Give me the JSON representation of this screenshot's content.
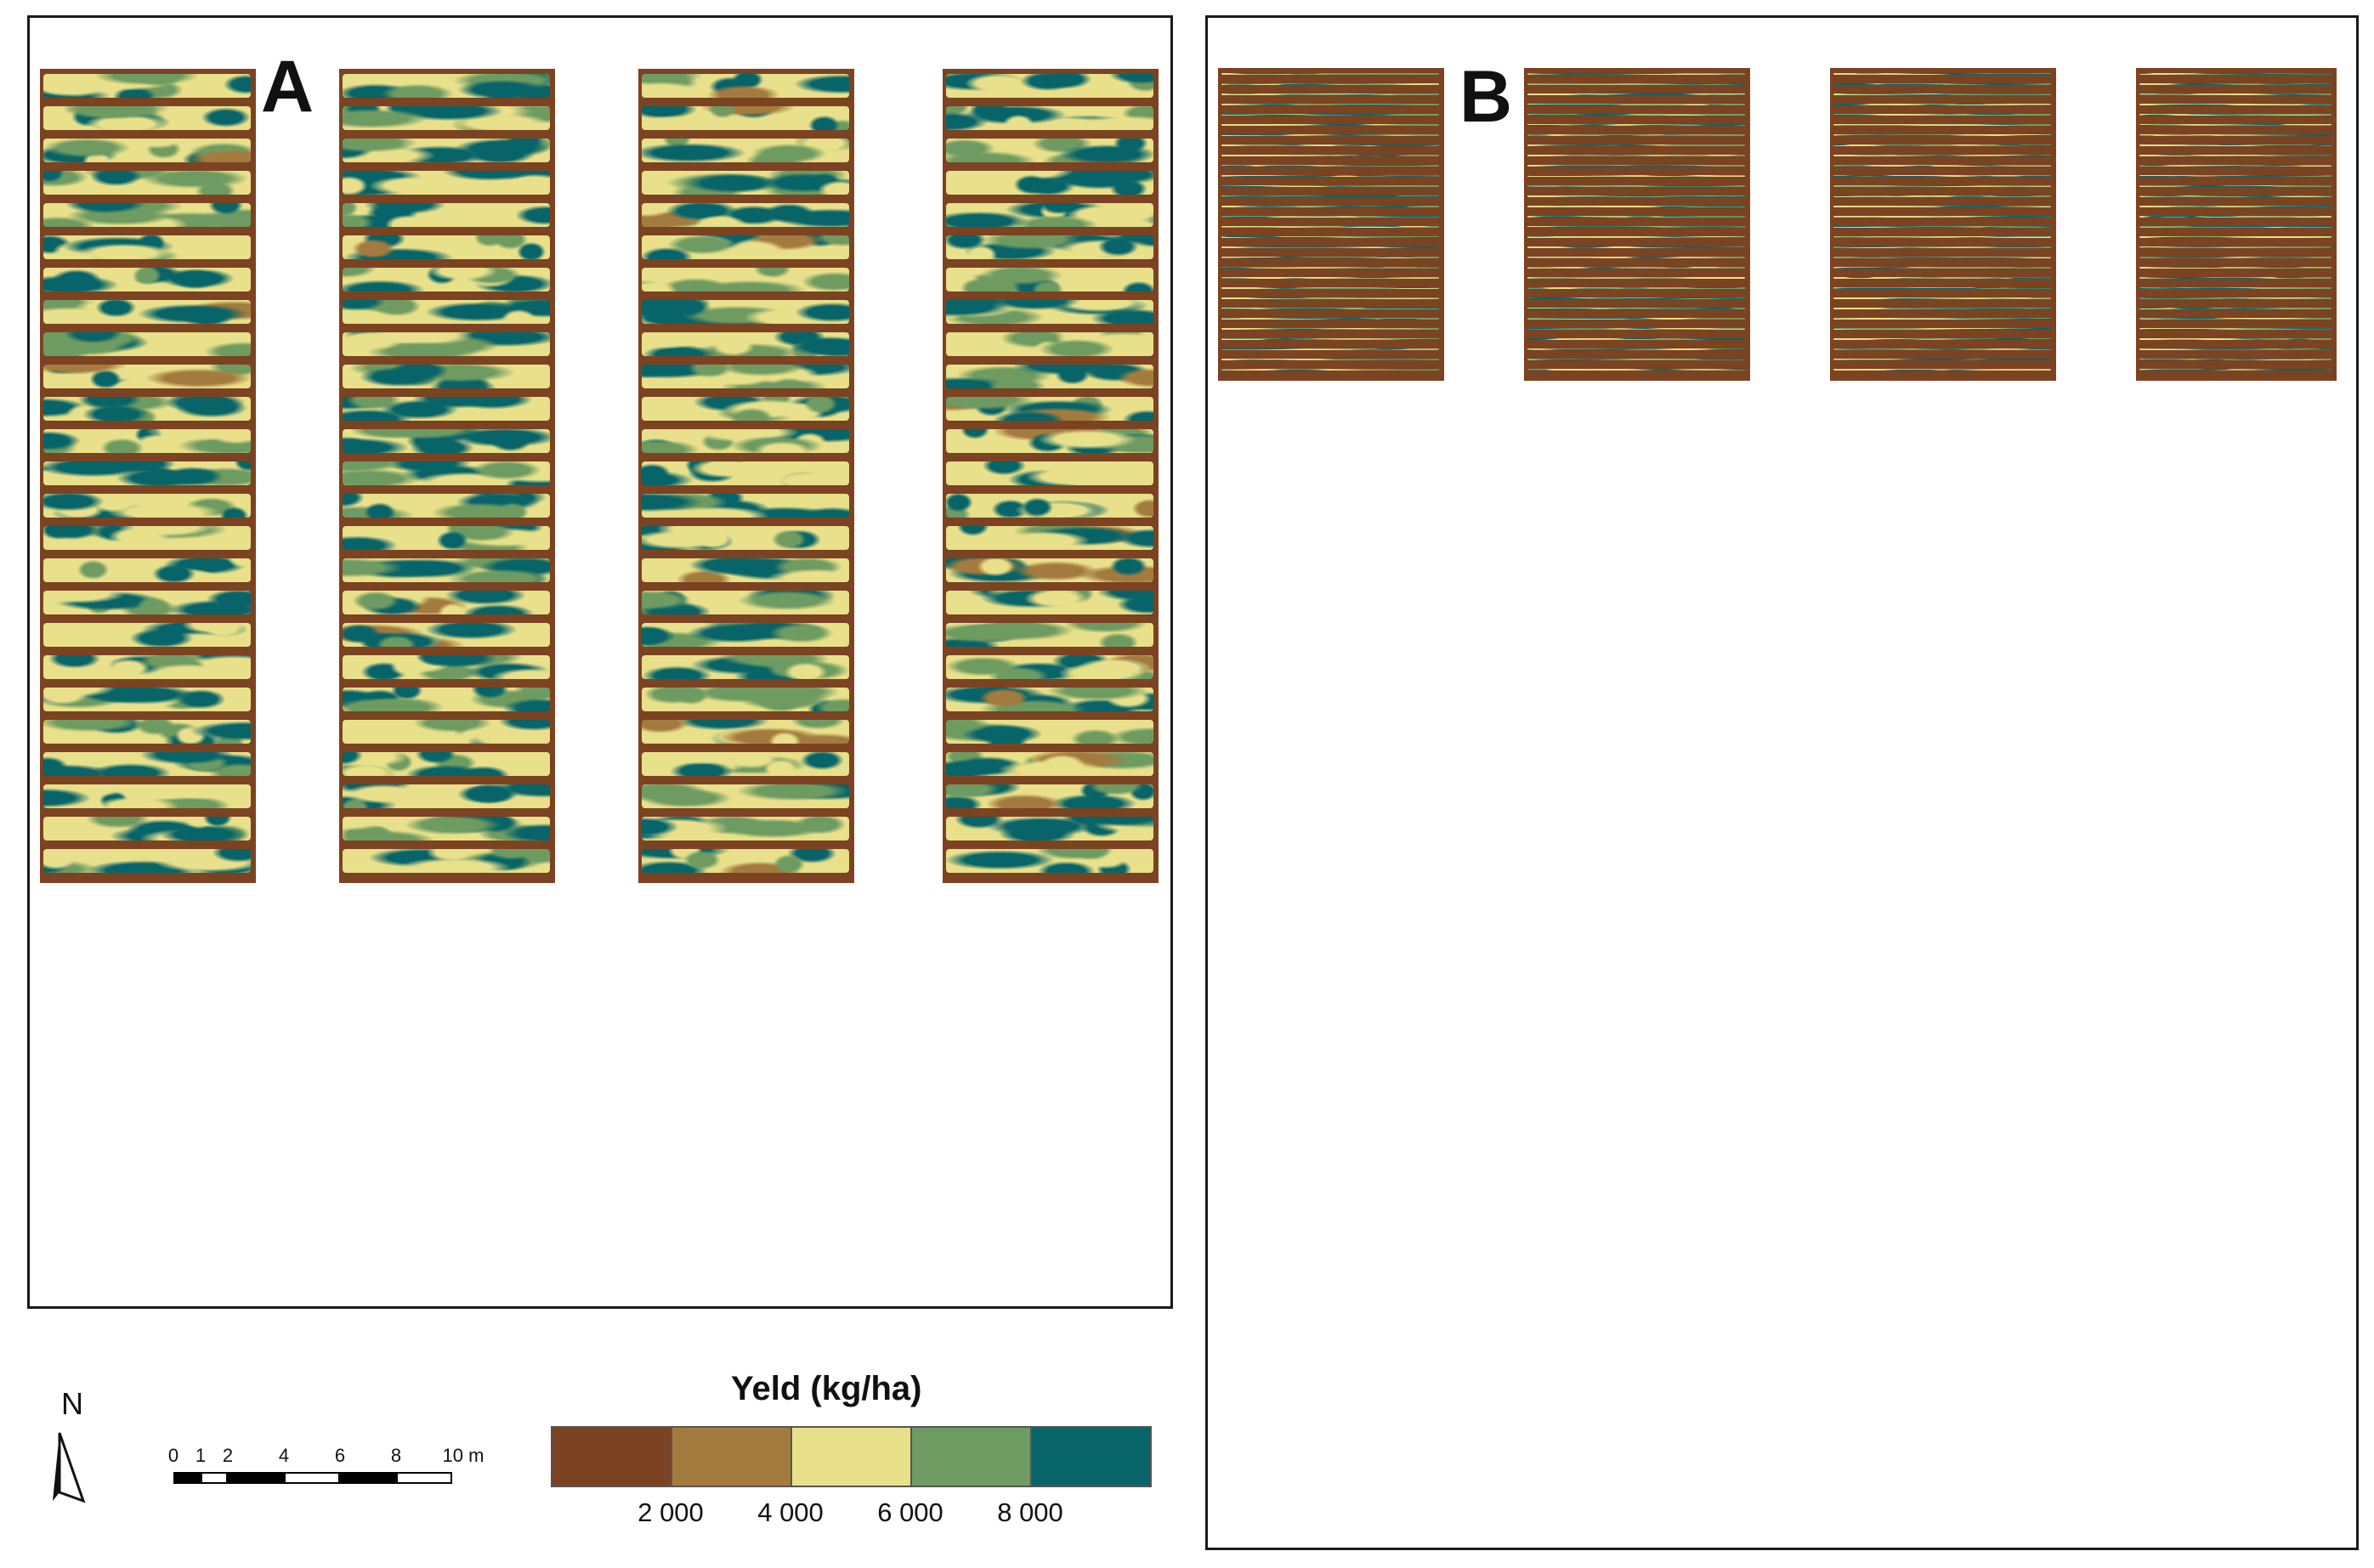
{
  "panels": [
    {
      "id": "A",
      "label": "A"
    },
    {
      "id": "B",
      "label": "B"
    }
  ],
  "legend": {
    "title": "Yeld (kg/ha)",
    "classes": [
      {
        "color": "#7b4321"
      },
      {
        "color": "#a47b3f"
      },
      {
        "color": "#e8e08a"
      },
      {
        "color": "#6e9b62"
      },
      {
        "color": "#076468"
      }
    ],
    "tick_labels": [
      "2 000",
      "4 000",
      "6 000",
      "8 000"
    ]
  },
  "scale_bar": {
    "labels": [
      "0",
      "1",
      "2",
      "4",
      "6",
      "8",
      "10 m"
    ]
  },
  "north_arrow": {
    "label": "N",
    "icon": "north-arrow-icon"
  },
  "colors": {
    "soil": "#7b4321",
    "low": "#a47b3f",
    "mid": "#e8e08a",
    "high": "#6e9b62",
    "very_high": "#076468"
  }
}
